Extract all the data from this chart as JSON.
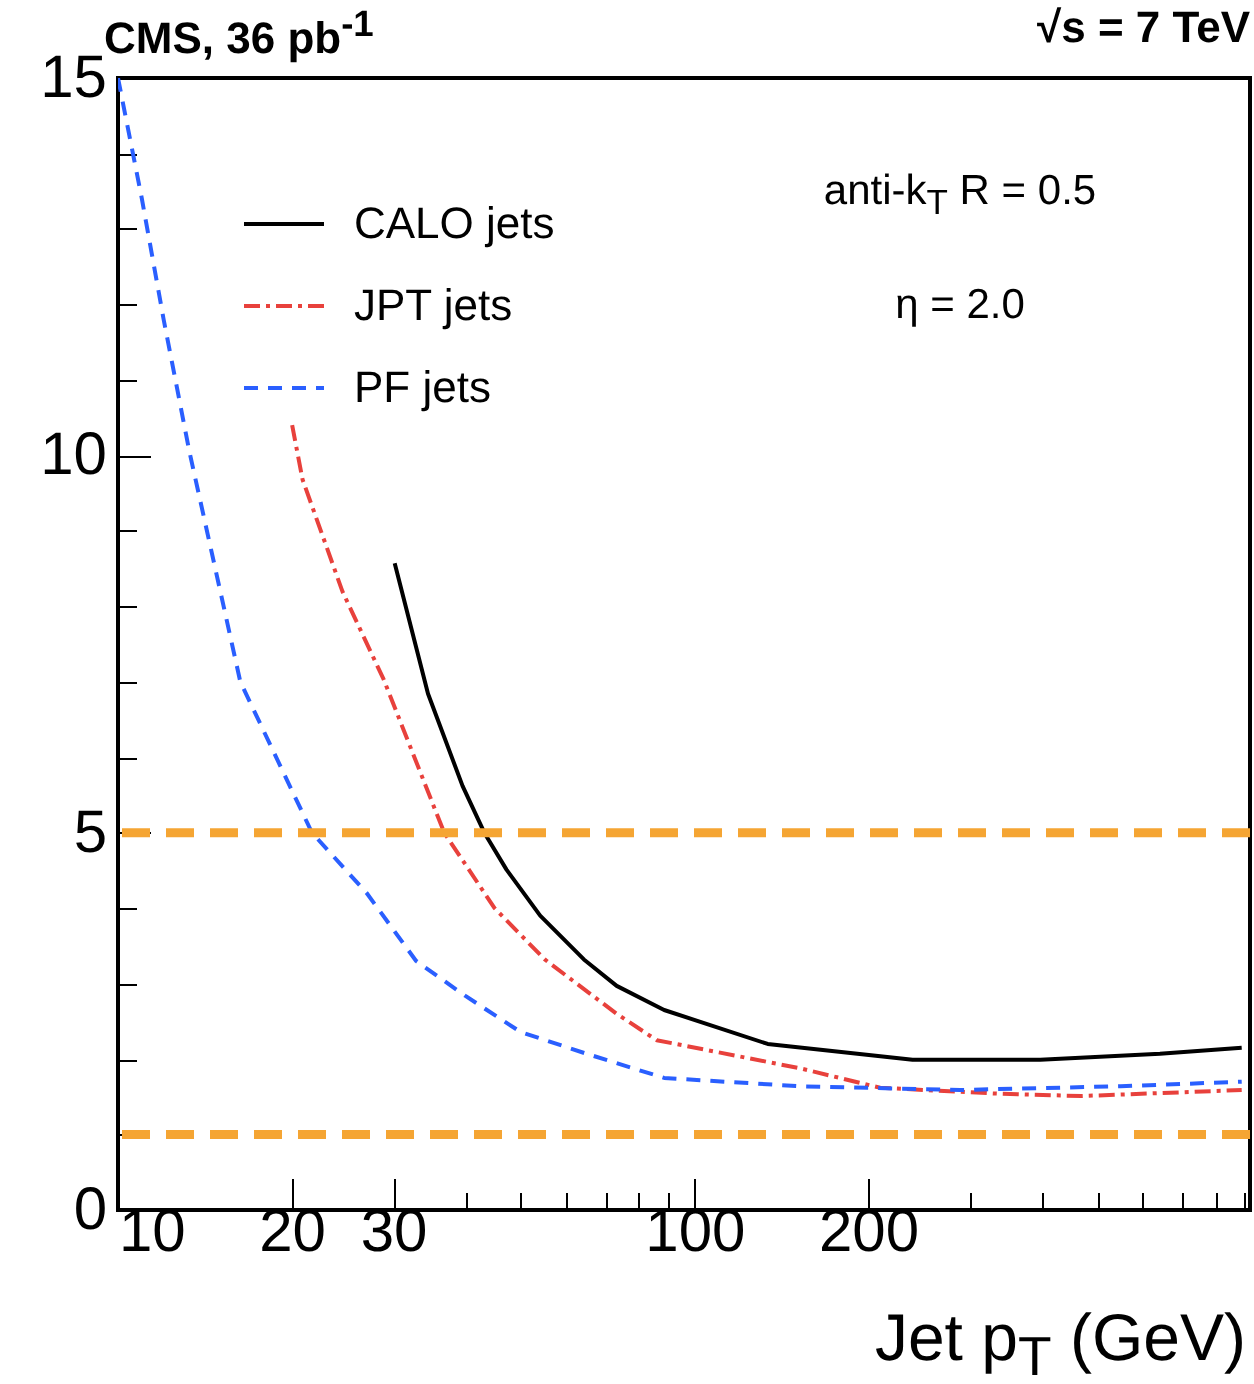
{
  "chart_data": {
    "type": "line",
    "title": "CMS, 36 pb$^{-1}$",
    "xlabel": "Jet p$_{T}$ (GeV)",
    "annotations": [
      "√s = 7 TeV",
      "anti-k$_{T}$ R = 0.5",
      "η = 2.0"
    ],
    "log": "x",
    "grid": false,
    "legend": "top left",
    "marker": "none",
    "xlim": [
      10,
      920
    ],
    "ylim": [
      0,
      15
    ],
    "xticks": [
      10,
      20,
      30,
      {
        "value": 40,
        "label": null
      },
      {
        "value": 50,
        "label": null
      },
      {
        "value": 60,
        "label": null
      },
      {
        "value": 70,
        "label": null
      },
      {
        "value": 80,
        "label": null
      },
      {
        "value": 90,
        "label": null
      },
      100,
      200,
      {
        "value": 300,
        "label": null
      },
      {
        "value": 400,
        "label": null
      },
      {
        "value": 500,
        "label": null
      },
      {
        "value": 600,
        "label": null
      },
      {
        "value": 700,
        "label": null
      },
      {
        "value": 800,
        "label": null
      },
      {
        "value": 900,
        "label": null
      }
    ],
    "yticks": [
      0,
      {
        "value": 1,
        "label": null
      },
      {
        "value": 2,
        "label": null
      },
      {
        "value": 3,
        "label": null
      },
      {
        "value": 4,
        "label": null
      },
      5,
      {
        "value": 6,
        "label": null
      },
      {
        "value": 7,
        "label": null
      },
      {
        "value": 8,
        "label": null
      },
      {
        "value": 9,
        "label": null
      },
      10,
      {
        "value": 11,
        "label": null
      },
      {
        "value": 12,
        "label": null
      },
      {
        "value": 13,
        "label": null
      },
      {
        "value": 14,
        "label": null
      },
      15
    ],
    "series": [
      {
        "name": "CALO jets",
        "color": "#000000",
        "line_style": "solid",
        "x": [
          30.2,
          34.5,
          39.6,
          43.2,
          47.2,
          54,
          64.3,
          73.3,
          88.6,
          134,
          239,
          398,
          642,
          890
        ],
        "values": [
          8.57,
          6.84,
          5.62,
          5.0,
          4.51,
          3.9,
          3.32,
          2.97,
          2.65,
          2.2,
          1.99,
          1.99,
          2.07,
          2.15
        ]
      },
      {
        "name": "JPT jets",
        "color": "#e8413c",
        "line_style": "dashdot",
        "x": [
          20.05,
          20.9,
          24.5,
          28.9,
          36.8,
          45,
          55,
          73.3,
          86,
          152,
          210,
          340,
          469,
          890
        ],
        "values": [
          10.4,
          9.68,
          8.2,
          7.03,
          5.0,
          4.0,
          3.32,
          2.6,
          2.25,
          1.88,
          1.62,
          1.54,
          1.51,
          1.59
        ]
      },
      {
        "name": "PF jets",
        "color": "#2a5fff",
        "line_style": "dashed",
        "x": [
          10,
          11,
          12,
          13.3,
          16.3,
          21.7,
          27,
          32.9,
          40,
          49.9,
          65,
          88.6,
          152,
          289,
          549,
          890
        ],
        "values": [
          15,
          13.4,
          11.8,
          10.05,
          7.0,
          5.0,
          4.2,
          3.3,
          2.84,
          2.36,
          2.07,
          1.75,
          1.64,
          1.59,
          1.64,
          1.7
        ]
      }
    ],
    "ref_lines": [
      {
        "axis": "y",
        "value": 5,
        "color": "#f5a533",
        "line_style": "dashed"
      },
      {
        "axis": "y",
        "value": 1,
        "color": "#f5a533",
        "line_style": "dashed"
      }
    ]
  }
}
